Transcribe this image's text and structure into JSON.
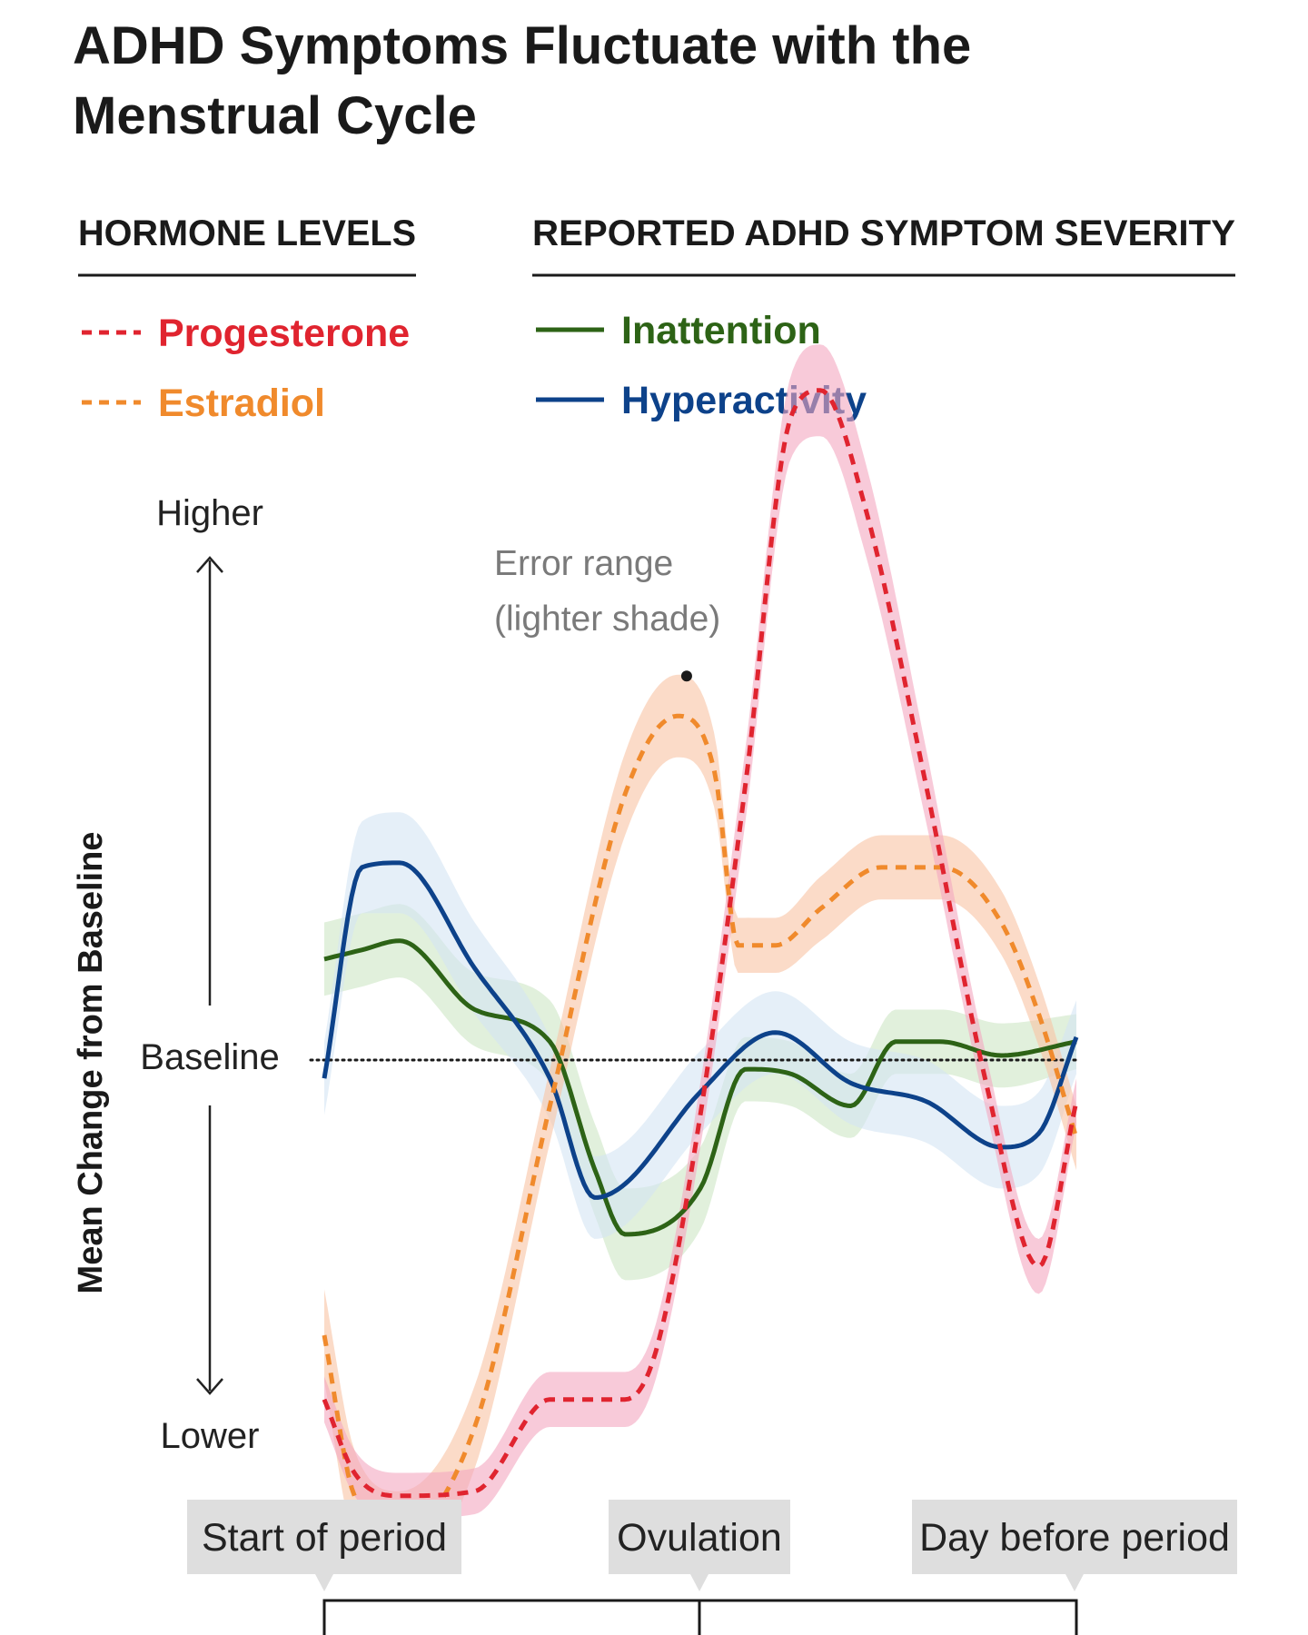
{
  "chart_data": {
    "type": "line",
    "title": "ADHD Symptoms Fluctuate with the Menstrual Cycle",
    "title_lines": [
      "ADHD Symptoms Fluctuate with the",
      "Menstrual Cycle"
    ],
    "legend_groups": [
      {
        "heading": "HORMONE LEVELS",
        "entries": [
          "Progesterone",
          "Estradiol"
        ]
      },
      {
        "heading": "REPORTED ADHD SYMPTOM SEVERITY",
        "entries": [
          "Inattention",
          "Hyperactivity"
        ]
      }
    ],
    "ylabel": "Mean Change from Baseline",
    "y_axis_words": {
      "top": "Higher",
      "middle": "Baseline",
      "bottom": "Lower"
    },
    "ylim": [
      -1.1,
      1.6
    ],
    "xlim": [
      0,
      1
    ],
    "baseline": 0,
    "phase_labels": [
      {
        "label": "Start of period",
        "x": 0.0
      },
      {
        "label": "Ovulation",
        "x": 0.5
      },
      {
        "label": "Day before period",
        "x": 1.0
      }
    ],
    "annotation": {
      "lines": [
        "Error range",
        "(lighter shade)"
      ],
      "points_to_series": "Estradiol",
      "x": 0.48
    },
    "series": [
      {
        "name": "Progesterone",
        "color": "#e0242f",
        "band_color": "#f4a7bf",
        "style": "dashed",
        "x": [
          0.0,
          0.04,
          0.1,
          0.2,
          0.3,
          0.4,
          0.44,
          0.5,
          0.56,
          0.62,
          0.66,
          0.72,
          0.8,
          0.88,
          0.95,
          1.0
        ],
        "y": [
          -0.74,
          -0.9,
          -0.95,
          -0.94,
          -0.74,
          -0.74,
          -0.64,
          -0.12,
          0.6,
          1.4,
          1.46,
          1.2,
          0.6,
          -0.05,
          -0.45,
          -0.09
        ],
        "band": [
          0.05,
          0.05,
          0.05,
          0.05,
          0.06,
          0.06,
          0.06,
          0.07,
          0.08,
          0.09,
          0.1,
          0.1,
          0.08,
          0.06,
          0.06,
          0.05
        ]
      },
      {
        "name": "Estradiol",
        "color": "#f08a2c",
        "band_color": "#f9c3a4",
        "style": "dashed",
        "x": [
          0.0,
          0.04,
          0.1,
          0.2,
          0.3,
          0.4,
          0.47,
          0.52,
          0.55,
          0.6,
          0.66,
          0.74,
          0.82,
          0.9,
          0.95,
          1.0
        ],
        "y": [
          -0.6,
          -0.95,
          -1.03,
          -0.8,
          -0.1,
          0.58,
          0.75,
          0.62,
          0.25,
          0.25,
          0.33,
          0.42,
          0.42,
          0.3,
          0.1,
          -0.17
        ],
        "band": [
          0.1,
          0.1,
          0.09,
          0.09,
          0.08,
          0.09,
          0.09,
          0.08,
          0.06,
          0.06,
          0.07,
          0.07,
          0.07,
          0.07,
          0.07,
          0.07
        ]
      },
      {
        "name": "Inattention",
        "color": "#2d6316",
        "band_color": "#cde6c4",
        "style": "solid",
        "x": [
          0.0,
          0.05,
          0.1,
          0.2,
          0.3,
          0.36,
          0.4,
          0.5,
          0.56,
          0.62,
          0.7,
          0.76,
          0.82,
          0.9,
          1.0
        ],
        "y": [
          0.22,
          0.24,
          0.26,
          0.11,
          0.04,
          -0.24,
          -0.38,
          -0.28,
          -0.02,
          -0.03,
          -0.1,
          0.04,
          0.04,
          0.01,
          0.04
        ],
        "band": [
          0.08,
          0.08,
          0.08,
          0.08,
          0.09,
          0.1,
          0.1,
          0.09,
          0.07,
          0.07,
          0.07,
          0.07,
          0.07,
          0.07,
          0.06
        ]
      },
      {
        "name": "Hyperactivity",
        "color": "#0d428a",
        "band_color": "#d4e4f4",
        "style": "solid",
        "x": [
          0.0,
          0.05,
          0.1,
          0.2,
          0.3,
          0.36,
          0.4,
          0.5,
          0.6,
          0.7,
          0.8,
          0.9,
          0.95,
          1.0
        ],
        "y": [
          -0.04,
          0.42,
          0.43,
          0.2,
          -0.04,
          -0.3,
          -0.27,
          -0.07,
          0.06,
          -0.05,
          -0.09,
          -0.19,
          -0.16,
          0.05
        ],
        "band": [
          0.08,
          0.1,
          0.11,
          0.1,
          0.09,
          0.09,
          0.09,
          0.09,
          0.09,
          0.09,
          0.09,
          0.09,
          0.09,
          0.08
        ]
      }
    ]
  }
}
